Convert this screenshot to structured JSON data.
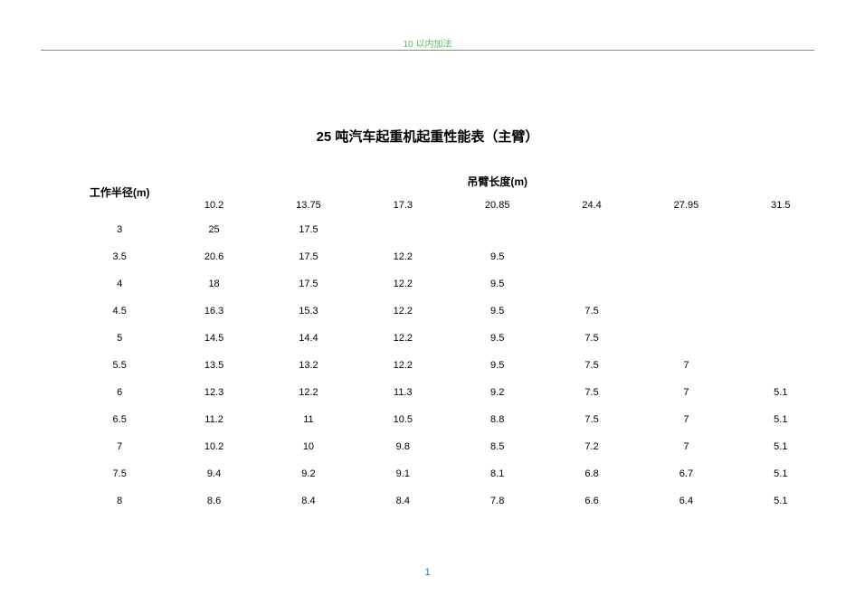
{
  "watermark": "10 以内加法",
  "title": "25 吨汽车起重机起重性能表（主臂）",
  "table": {
    "row_header_label": "工作半径(m)",
    "column_group_label": "吊臂长度(m)",
    "columns": [
      "10.2",
      "13.75",
      "17.3",
      "20.85",
      "24.4",
      "27.95",
      "31.5"
    ],
    "rows": [
      {
        "label": "3",
        "cells": [
          "25",
          "17.5",
          "",
          "",
          "",
          "",
          ""
        ]
      },
      {
        "label": "3.5",
        "cells": [
          "20.6",
          "17.5",
          "12.2",
          "9.5",
          "",
          "",
          ""
        ]
      },
      {
        "label": "4",
        "cells": [
          "18",
          "17.5",
          "12.2",
          "9.5",
          "",
          "",
          ""
        ]
      },
      {
        "label": "4.5",
        "cells": [
          "16.3",
          "15.3",
          "12.2",
          "9.5",
          "7.5",
          "",
          ""
        ]
      },
      {
        "label": "5",
        "cells": [
          "14.5",
          "14.4",
          "12.2",
          "9.5",
          "7.5",
          "",
          ""
        ]
      },
      {
        "label": "5.5",
        "cells": [
          "13.5",
          "13.2",
          "12.2",
          "9.5",
          "7.5",
          "7",
          ""
        ]
      },
      {
        "label": "6",
        "cells": [
          "12.3",
          "12.2",
          "11.3",
          "9.2",
          "7.5",
          "7",
          "5.1"
        ]
      },
      {
        "label": "6.5",
        "cells": [
          "11.2",
          "11",
          "10.5",
          "8.8",
          "7.5",
          "7",
          "5.1"
        ]
      },
      {
        "label": "7",
        "cells": [
          "10.2",
          "10",
          "9.8",
          "8.5",
          "7.2",
          "7",
          "5.1"
        ]
      },
      {
        "label": "7.5",
        "cells": [
          "9.4",
          "9.2",
          "9.1",
          "8.1",
          "6.8",
          "6.7",
          "5.1"
        ]
      },
      {
        "label": "8",
        "cells": [
          "8.6",
          "8.4",
          "8.4",
          "7.8",
          "6.6",
          "6.4",
          "5.1"
        ]
      }
    ]
  },
  "page_number": "1",
  "colors": {
    "watermark": "#5cb85c",
    "text": "#000000",
    "page_number": "#2e74b5",
    "border": "#888888",
    "background": "#ffffff"
  }
}
